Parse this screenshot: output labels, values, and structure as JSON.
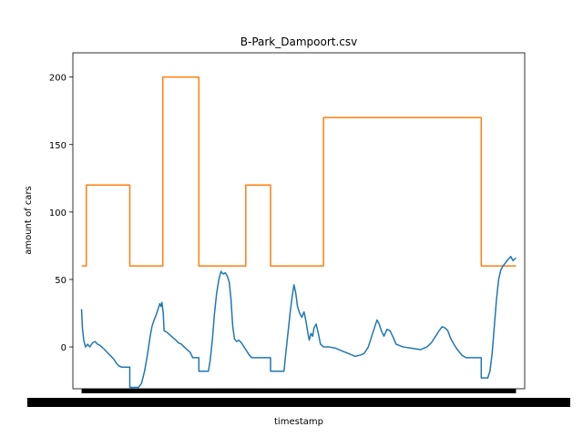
{
  "chart_data": {
    "type": "line",
    "title": "B-Park_Dampoort.csv",
    "xlabel": "timestamp",
    "ylabel": "amount of cars",
    "ylim": [
      -31,
      218
    ],
    "xlim": [
      -0.02,
      1.02
    ],
    "yticks": [
      0,
      50,
      100,
      150,
      200
    ],
    "grid": false,
    "legend": "none",
    "x_tick_labels": "dense overlapping timestamp labels (unreadable)",
    "series": [
      {
        "color": "#ff7f0e",
        "points": [
          [
            0.0,
            60
          ],
          [
            0.011,
            60
          ],
          [
            0.011,
            120
          ],
          [
            0.111,
            120
          ],
          [
            0.111,
            60
          ],
          [
            0.187,
            60
          ],
          [
            0.187,
            200
          ],
          [
            0.27,
            200
          ],
          [
            0.27,
            60
          ],
          [
            0.378,
            60
          ],
          [
            0.378,
            120
          ],
          [
            0.435,
            120
          ],
          [
            0.435,
            60
          ],
          [
            0.557,
            60
          ],
          [
            0.557,
            170
          ],
          [
            0.92,
            170
          ],
          [
            0.92,
            60
          ],
          [
            1.0,
            60
          ]
        ]
      },
      {
        "color": "#1f77b4",
        "points": [
          [
            0.0,
            28
          ],
          [
            0.002,
            14
          ],
          [
            0.005,
            5
          ],
          [
            0.009,
            0
          ],
          [
            0.014,
            2
          ],
          [
            0.019,
            0
          ],
          [
            0.025,
            3
          ],
          [
            0.031,
            4
          ],
          [
            0.037,
            2
          ],
          [
            0.043,
            1
          ],
          [
            0.05,
            -1
          ],
          [
            0.056,
            -3
          ],
          [
            0.062,
            -5
          ],
          [
            0.068,
            -7
          ],
          [
            0.074,
            -9
          ],
          [
            0.08,
            -12
          ],
          [
            0.086,
            -14
          ],
          [
            0.092,
            -15
          ],
          [
            0.105,
            -15
          ],
          [
            0.111,
            -15
          ],
          [
            0.111,
            -30
          ],
          [
            0.131,
            -30
          ],
          [
            0.138,
            -27
          ],
          [
            0.145,
            -18
          ],
          [
            0.152,
            -5
          ],
          [
            0.158,
            8
          ],
          [
            0.162,
            15
          ],
          [
            0.167,
            20
          ],
          [
            0.172,
            24
          ],
          [
            0.176,
            28
          ],
          [
            0.18,
            32
          ],
          [
            0.183,
            30
          ],
          [
            0.185,
            33
          ],
          [
            0.188,
            25
          ],
          [
            0.19,
            12
          ],
          [
            0.196,
            11
          ],
          [
            0.203,
            9
          ],
          [
            0.21,
            7
          ],
          [
            0.217,
            5
          ],
          [
            0.223,
            3
          ],
          [
            0.23,
            2
          ],
          [
            0.236,
            0
          ],
          [
            0.243,
            -2
          ],
          [
            0.25,
            -4
          ],
          [
            0.256,
            -8
          ],
          [
            0.27,
            -8
          ],
          [
            0.27,
            -18
          ],
          [
            0.292,
            -18
          ],
          [
            0.296,
            -10
          ],
          [
            0.301,
            5
          ],
          [
            0.306,
            25
          ],
          [
            0.311,
            40
          ],
          [
            0.316,
            50
          ],
          [
            0.321,
            56
          ],
          [
            0.326,
            54
          ],
          [
            0.331,
            55
          ],
          [
            0.336,
            52
          ],
          [
            0.34,
            48
          ],
          [
            0.344,
            35
          ],
          [
            0.348,
            15
          ],
          [
            0.352,
            6
          ],
          [
            0.357,
            4
          ],
          [
            0.362,
            5
          ],
          [
            0.368,
            3
          ],
          [
            0.374,
            0
          ],
          [
            0.38,
            -3
          ],
          [
            0.386,
            -6
          ],
          [
            0.392,
            -8
          ],
          [
            0.435,
            -8
          ],
          [
            0.435,
            -18
          ],
          [
            0.466,
            -18
          ],
          [
            0.47,
            -5
          ],
          [
            0.475,
            10
          ],
          [
            0.48,
            25
          ],
          [
            0.485,
            38
          ],
          [
            0.489,
            46
          ],
          [
            0.493,
            40
          ],
          [
            0.497,
            30
          ],
          [
            0.502,
            25
          ],
          [
            0.507,
            22
          ],
          [
            0.512,
            26
          ],
          [
            0.516,
            20
          ],
          [
            0.52,
            12
          ],
          [
            0.524,
            5
          ],
          [
            0.528,
            10
          ],
          [
            0.532,
            8
          ],
          [
            0.535,
            14
          ],
          [
            0.54,
            17
          ],
          [
            0.545,
            10
          ],
          [
            0.55,
            2
          ],
          [
            0.557,
            0
          ],
          [
            0.57,
            0
          ],
          [
            0.585,
            -1
          ],
          [
            0.6,
            -3
          ],
          [
            0.615,
            -5
          ],
          [
            0.63,
            -7
          ],
          [
            0.642,
            -6
          ],
          [
            0.65,
            -5
          ],
          [
            0.66,
            0
          ],
          [
            0.668,
            8
          ],
          [
            0.675,
            15
          ],
          [
            0.68,
            20
          ],
          [
            0.685,
            17
          ],
          [
            0.69,
            12
          ],
          [
            0.696,
            8
          ],
          [
            0.703,
            13
          ],
          [
            0.71,
            12
          ],
          [
            0.716,
            8
          ],
          [
            0.724,
            2
          ],
          [
            0.74,
            0
          ],
          [
            0.76,
            -1
          ],
          [
            0.78,
            -2
          ],
          [
            0.795,
            0
          ],
          [
            0.805,
            3
          ],
          [
            0.815,
            8
          ],
          [
            0.823,
            12
          ],
          [
            0.83,
            15
          ],
          [
            0.837,
            14
          ],
          [
            0.843,
            12
          ],
          [
            0.85,
            6
          ],
          [
            0.857,
            2
          ],
          [
            0.865,
            -2
          ],
          [
            0.875,
            -6
          ],
          [
            0.885,
            -8
          ],
          [
            0.92,
            -8
          ],
          [
            0.92,
            -23
          ],
          [
            0.935,
            -23
          ],
          [
            0.94,
            -18
          ],
          [
            0.945,
            -5
          ],
          [
            0.95,
            15
          ],
          [
            0.955,
            35
          ],
          [
            0.96,
            50
          ],
          [
            0.965,
            57
          ],
          [
            0.97,
            60
          ],
          [
            0.975,
            62
          ],
          [
            0.982,
            65
          ],
          [
            0.988,
            67
          ],
          [
            0.993,
            64
          ],
          [
            1.0,
            66
          ]
        ]
      }
    ]
  }
}
